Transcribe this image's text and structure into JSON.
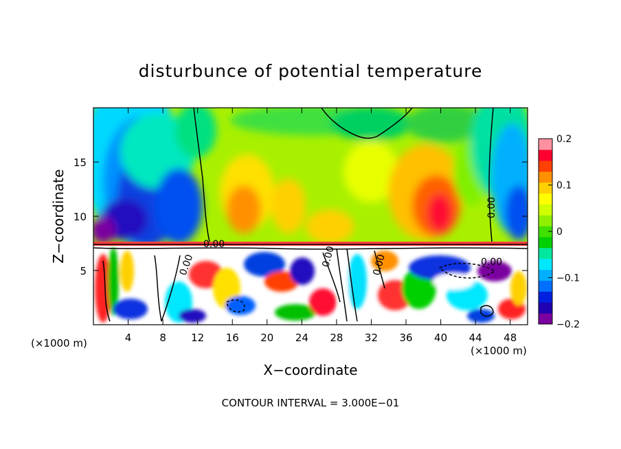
{
  "chart_data": {
    "type": "heatmap",
    "title": "disturbunce of potential temperature",
    "xlabel": "X−coordinate",
    "ylabel": "Z−coordinate",
    "x_unit_left": "(×1000 m)",
    "x_unit_right": "(×1000 m)",
    "x_ticks": [
      4,
      8,
      12,
      16,
      20,
      24,
      28,
      32,
      36,
      40,
      44,
      48
    ],
    "y_ticks": [
      5,
      10,
      15
    ],
    "xlim": [
      0,
      50
    ],
    "ylim": [
      0,
      20
    ],
    "colorbar": {
      "range": [
        -0.2,
        0.2
      ],
      "ticks": [
        {
          "value": 0.2,
          "label": "0.2"
        },
        {
          "value": 0.1,
          "label": "0.1"
        },
        {
          "value": 0,
          "label": "0"
        },
        {
          "value": -0.1,
          "label": "−0.1"
        },
        {
          "value": -0.2,
          "label": "−0.2"
        }
      ],
      "colors": [
        "#7a00a0",
        "#2000b0",
        "#0020e0",
        "#0070ff",
        "#00b0ff",
        "#00e8ff",
        "#00e8a0",
        "#00d000",
        "#40e000",
        "#90f000",
        "#d0ff00",
        "#ffff00",
        "#ffd000",
        "#ff9000",
        "#ff4000",
        "#ff0030",
        "#ff90a0"
      ]
    },
    "contour_labels": [
      "0.00",
      "0.00",
      "0.00",
      "0.00",
      "0.00",
      "0.00"
    ],
    "footer": "CONTOUR INTERVAL = 3.000E−01"
  }
}
